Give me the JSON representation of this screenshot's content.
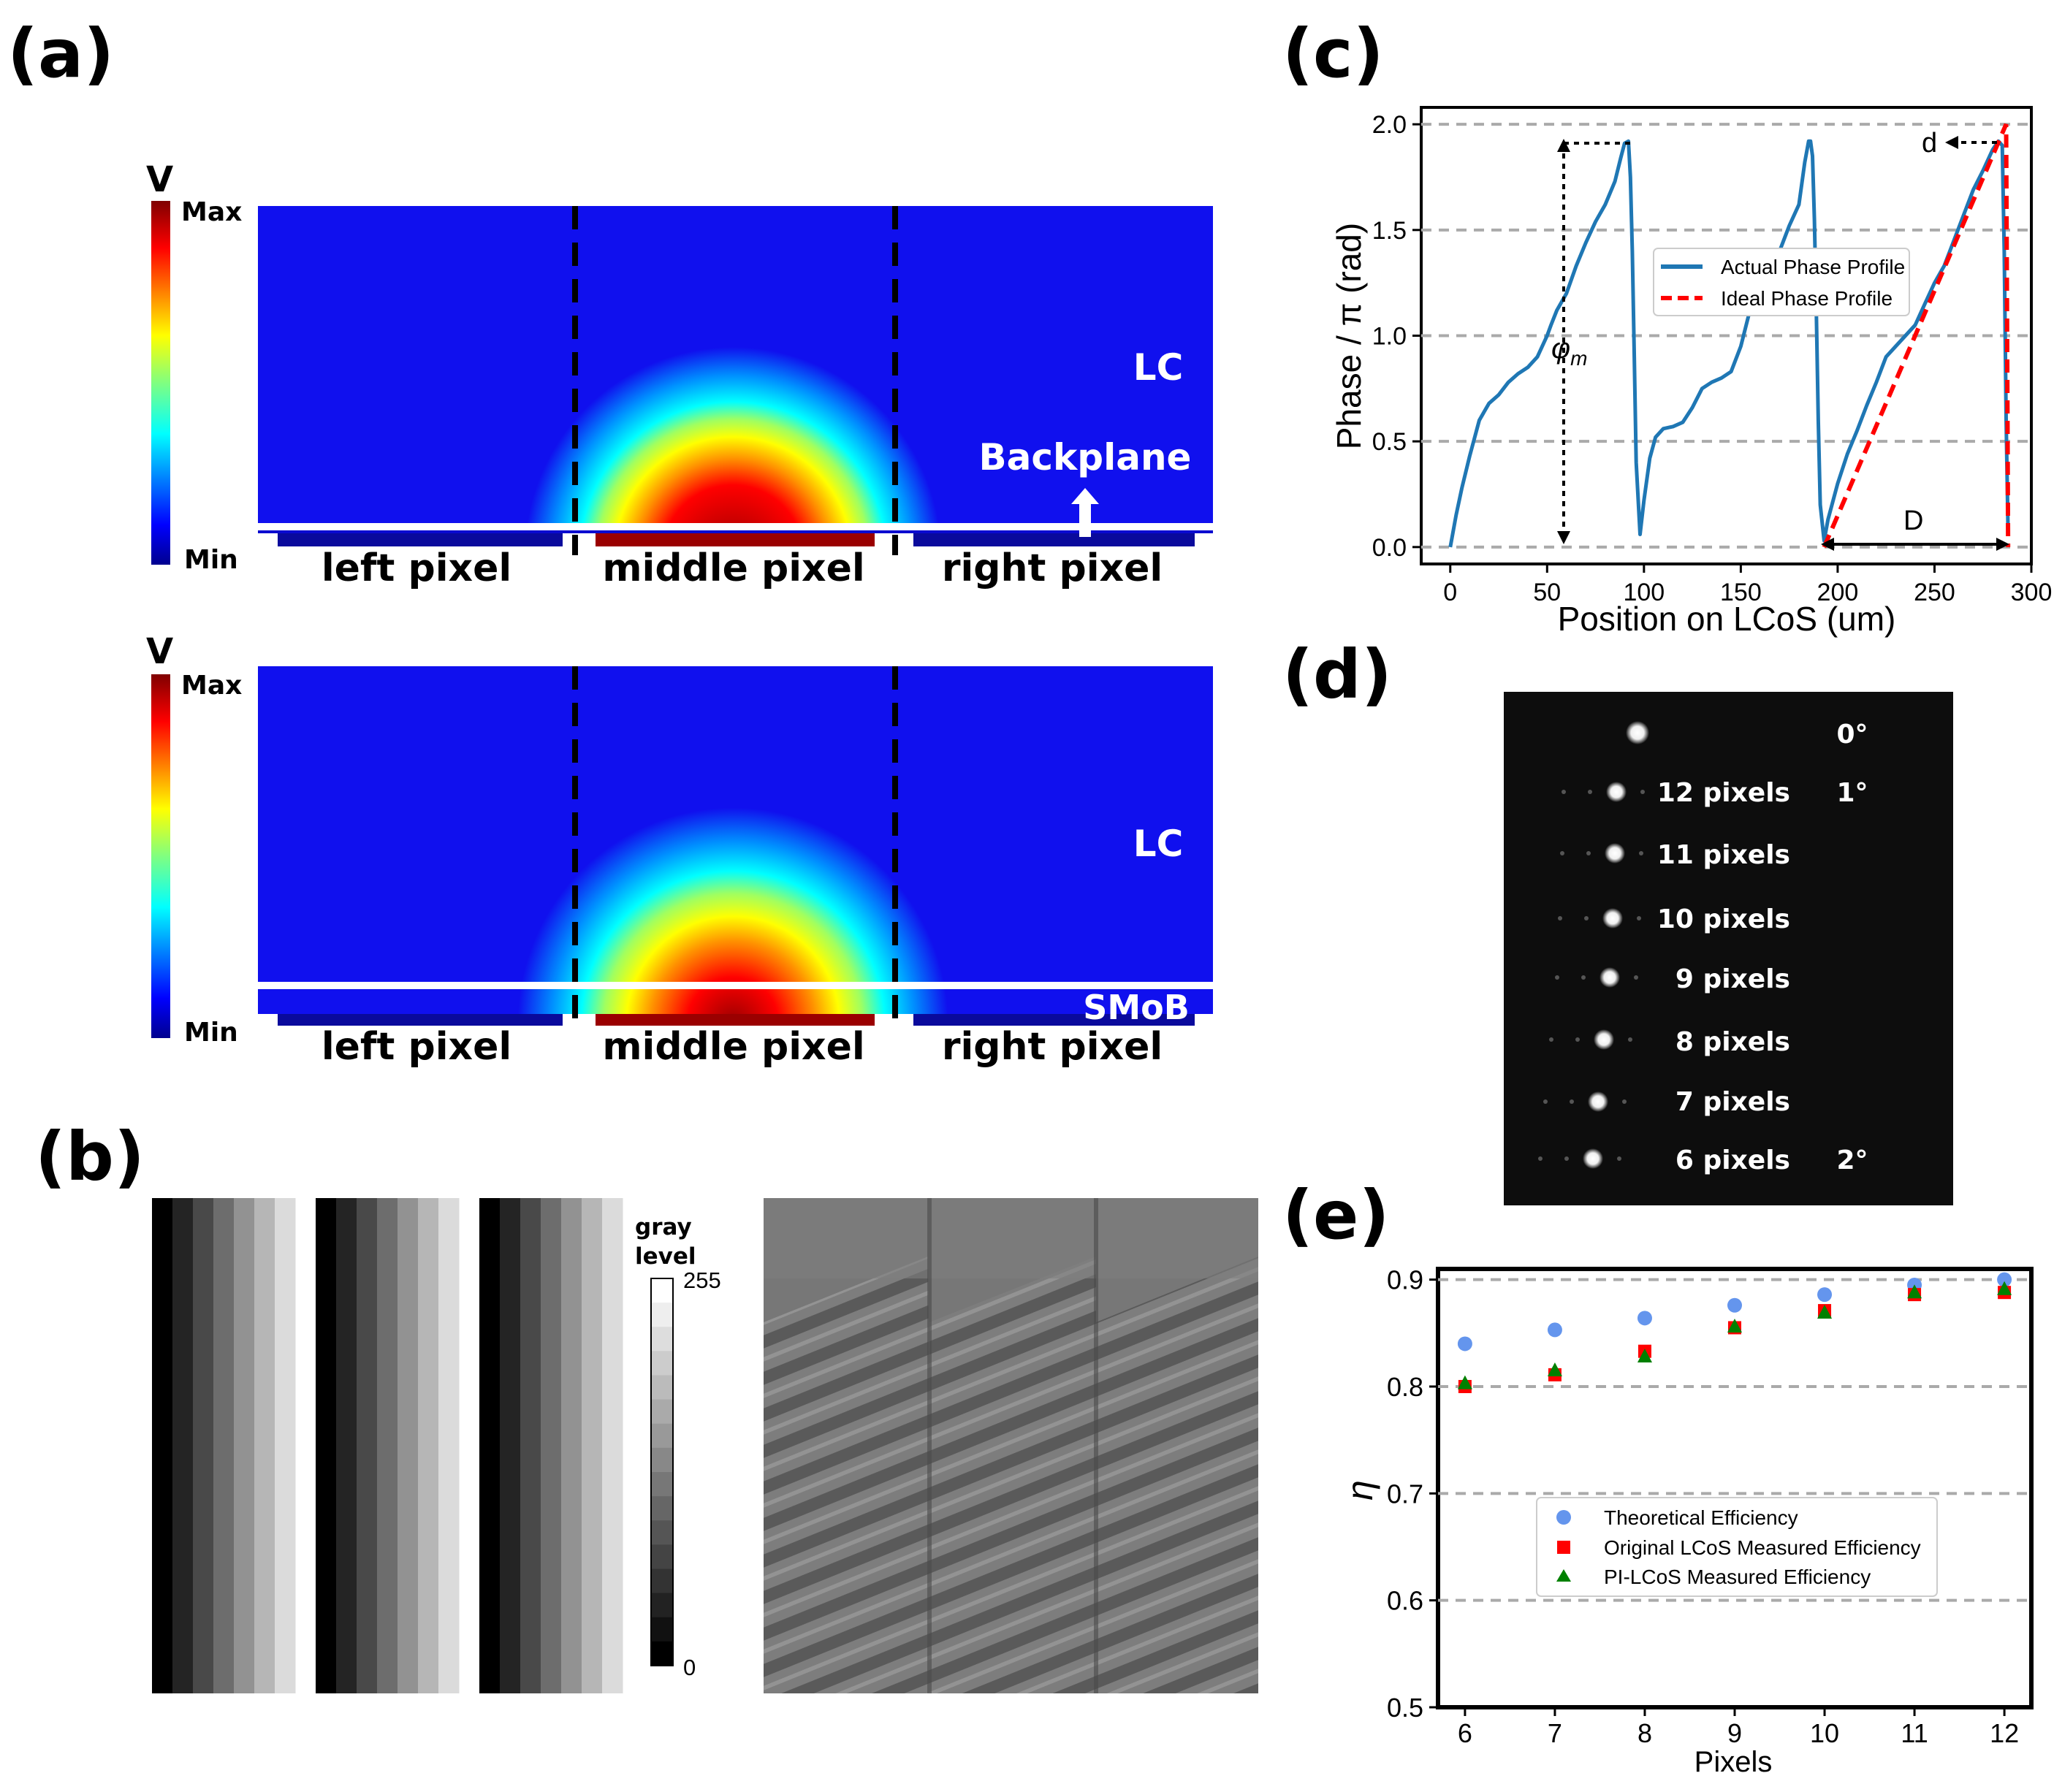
{
  "panels": {
    "a": "(a)",
    "b": "(b)",
    "c": "(c)",
    "d": "(d)",
    "e": "(e)"
  },
  "panel_a": {
    "colorbar_label": "V",
    "max_label": "Max",
    "min_label": "Min",
    "top": {
      "region": "LC",
      "annotation": "Backplane"
    },
    "bottom": {
      "region": "LC",
      "annotation": "SMoB"
    },
    "pixel_labels": [
      "left pixel",
      "middle pixel",
      "right pixel"
    ]
  },
  "panel_b": {
    "colorbar_title_1": "gray",
    "colorbar_title_2": "level",
    "colorbar_max": "255",
    "colorbar_min": "0",
    "gray_steps": [
      "#000000",
      "#242424",
      "#494949",
      "#6d6d6d",
      "#929292",
      "#b6b6b6",
      "#dbdbdb"
    ]
  },
  "panel_c": {
    "xlabel": "Position on LCoS (um)",
    "ylabel": "Phase / π (rad)",
    "legend": [
      "Actual Phase Profile",
      "Ideal Phase Profile"
    ],
    "phi_label": "φ",
    "phi_sub": "m",
    "d_label": "d",
    "D_label": "D",
    "x_ticks": [
      "0",
      "50",
      "100",
      "150",
      "200",
      "250",
      "300"
    ],
    "y_ticks": [
      "0.0",
      "0.5",
      "1.0",
      "1.5",
      "2.0"
    ]
  },
  "panel_d": {
    "labels": [
      "12 pixels",
      "11 pixels",
      "10 pixels",
      "9 pixels",
      "8 pixels",
      "7 pixels",
      "6 pixels"
    ],
    "angles": [
      "0°",
      "1°",
      "2°"
    ]
  },
  "chart_data": [
    {
      "type": "line",
      "title": "",
      "xlabel": "Position on LCoS (um)",
      "ylabel": "Phase / π (rad)",
      "xlim": [
        -15,
        300
      ],
      "ylim": [
        -0.08,
        2.08
      ],
      "grid": "horizontal dashed",
      "legend_position": "center-right",
      "series": [
        {
          "name": "Actual Phase Profile",
          "color": "#1f77b4",
          "x": [
            0,
            3,
            6,
            10,
            15,
            20,
            25,
            30,
            35,
            40,
            45,
            50,
            52,
            55,
            60,
            65,
            70,
            75,
            80,
            85,
            88,
            90,
            92,
            93,
            94,
            95,
            96,
            98,
            100,
            103,
            106,
            110,
            115,
            120,
            125,
            130,
            135,
            140,
            145,
            150,
            155,
            160,
            165,
            170,
            175,
            180,
            183,
            185,
            186,
            187,
            188,
            189,
            190,
            191,
            193,
            195,
            200,
            205,
            210,
            215,
            220,
            225,
            230,
            235,
            240,
            245,
            250,
            255,
            260,
            265,
            270,
            275,
            280,
            283,
            285,
            286,
            287,
            288
          ],
          "y": [
            0,
            0.15,
            0.28,
            0.43,
            0.6,
            0.68,
            0.72,
            0.78,
            0.82,
            0.85,
            0.9,
            1.0,
            1.05,
            1.12,
            1.2,
            1.33,
            1.44,
            1.54,
            1.62,
            1.73,
            1.84,
            1.91,
            1.92,
            1.75,
            1.4,
            0.9,
            0.4,
            0.06,
            0.22,
            0.42,
            0.52,
            0.56,
            0.57,
            0.59,
            0.66,
            0.75,
            0.78,
            0.8,
            0.83,
            0.95,
            1.13,
            1.18,
            1.27,
            1.4,
            1.52,
            1.62,
            1.82,
            1.92,
            1.92,
            1.85,
            1.55,
            1.1,
            0.6,
            0.2,
            0.03,
            0.13,
            0.3,
            0.44,
            0.55,
            0.67,
            0.78,
            0.9,
            0.95,
            1.0,
            1.05,
            1.15,
            1.25,
            1.33,
            1.45,
            1.57,
            1.69,
            1.78,
            1.88,
            1.92,
            1.9,
            1.4,
            0.6,
            0.06
          ]
        },
        {
          "name": "Ideal Phase Profile",
          "color": "#ff0000",
          "x": [
            193,
            287,
            288
          ],
          "y": [
            0,
            2,
            0
          ]
        }
      ]
    },
    {
      "type": "scatter",
      "title": "",
      "xlabel": "Pixels",
      "ylabel": "η",
      "x": [
        6,
        7,
        8,
        9,
        10,
        11,
        12
      ],
      "xlim": [
        5.7,
        12.3
      ],
      "ylim": [
        0.5,
        0.91
      ],
      "y_ticks": [
        0.5,
        0.6,
        0.7,
        0.8,
        0.9
      ],
      "grid": "horizontal dashed",
      "legend_position": "center",
      "series": [
        {
          "name": "Theoretical Efficiency",
          "color": "#6495ed",
          "marker": "circle",
          "values": [
            0.84,
            0.853,
            0.864,
            0.876,
            0.886,
            0.895,
            0.9
          ]
        },
        {
          "name": "Original LCoS Measured Efficiency",
          "color": "#ff0000",
          "marker": "square",
          "values": [
            0.8,
            0.811,
            0.833,
            0.855,
            0.871,
            0.886,
            0.888
          ]
        },
        {
          "name": "PI-LCoS Measured Efficiency",
          "color": "#008000",
          "marker": "triangle",
          "values": [
            0.803,
            0.815,
            0.828,
            0.856,
            0.869,
            0.888,
            0.891
          ]
        }
      ]
    }
  ]
}
